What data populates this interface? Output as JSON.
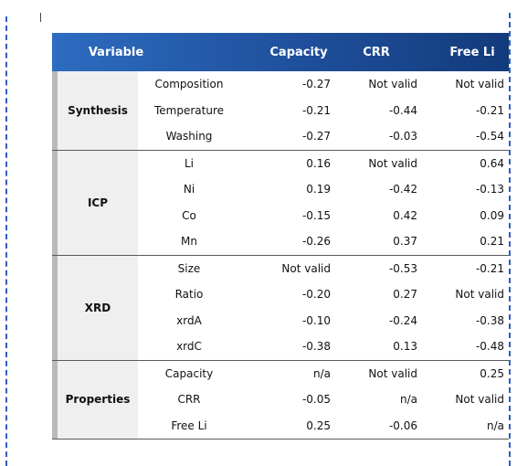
{
  "table": {
    "headers": {
      "variable": "Variable",
      "capacity": "Capacity",
      "crr": "CRR",
      "free_li": "Free Li"
    },
    "groups": [
      {
        "label": "Synthesis",
        "rows": [
          {
            "variable": "Composition",
            "capacity": "-0.27",
            "crr": "Not valid",
            "free_li": "Not valid"
          },
          {
            "variable": "Temperature",
            "capacity": "-0.21",
            "crr": "-0.44",
            "free_li": "-0.21"
          },
          {
            "variable": "Washing",
            "capacity": "-0.27",
            "crr": "-0.03",
            "free_li": "-0.54"
          }
        ]
      },
      {
        "label": "ICP",
        "rows": [
          {
            "variable": "Li",
            "capacity": "0.16",
            "crr": "Not valid",
            "free_li": "0.64"
          },
          {
            "variable": "Ni",
            "capacity": "0.19",
            "crr": "-0.42",
            "free_li": "-0.13"
          },
          {
            "variable": "Co",
            "capacity": "-0.15",
            "crr": "0.42",
            "free_li": "0.09"
          },
          {
            "variable": "Mn",
            "capacity": "-0.26",
            "crr": "0.37",
            "free_li": "0.21"
          }
        ]
      },
      {
        "label": "XRD",
        "rows": [
          {
            "variable": "Size",
            "capacity": "Not valid",
            "crr": "-0.53",
            "free_li": "-0.21"
          },
          {
            "variable": "Ratio",
            "capacity": "-0.20",
            "crr": "0.27",
            "free_li": "Not valid"
          },
          {
            "variable": "xrdA",
            "capacity": "-0.10",
            "crr": "-0.24",
            "free_li": "-0.38"
          },
          {
            "variable": "xrdC",
            "capacity": "-0.38",
            "crr": "0.13",
            "free_li": "-0.48"
          }
        ]
      },
      {
        "label": "Properties",
        "rows": [
          {
            "variable": "Capacity",
            "capacity": "n/a",
            "crr": "Not valid",
            "free_li": "0.25"
          },
          {
            "variable": "CRR",
            "capacity": "-0.05",
            "crr": "n/a",
            "free_li": "Not valid"
          },
          {
            "variable": "Free Li",
            "capacity": "0.25",
            "crr": "-0.06",
            "free_li": "n/a"
          }
        ]
      }
    ]
  },
  "colors": {
    "header_start": "#2d6cc0",
    "header_end": "#123b7c",
    "frame_dash": "#2f5fb8"
  }
}
